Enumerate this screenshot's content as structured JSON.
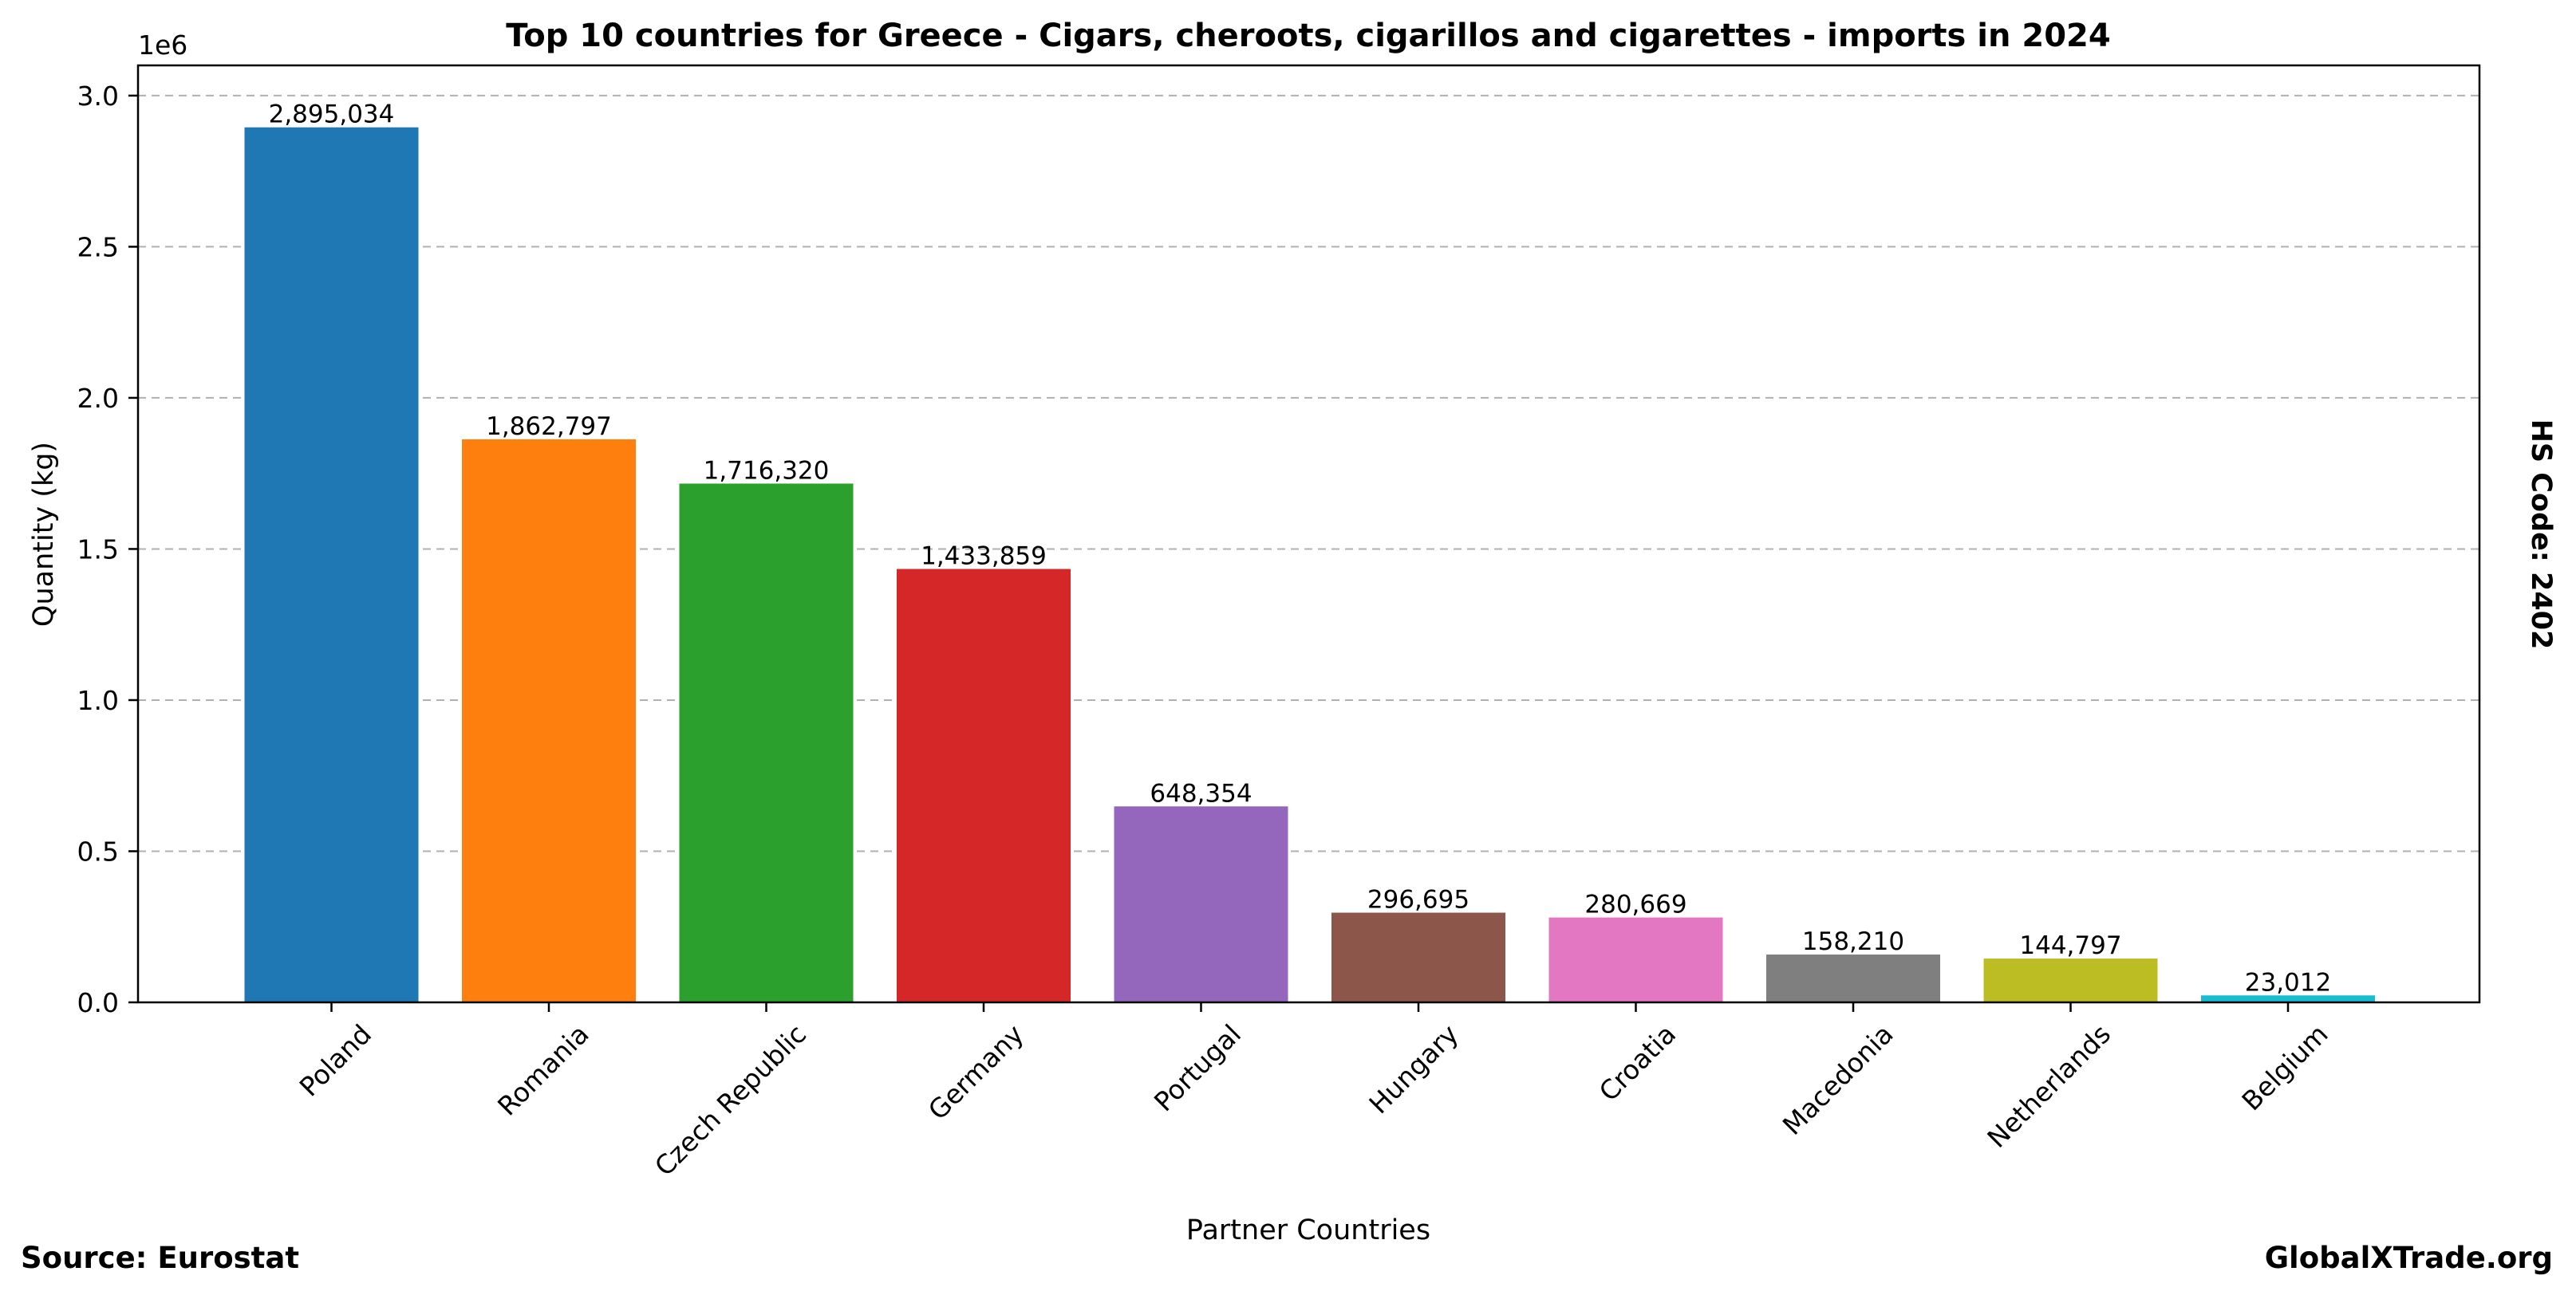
{
  "chart_data": {
    "type": "bar",
    "title": "Top 10 countries for Greece - Cigars, cheroots, cigarillos and cigarettes - imports in 2024",
    "xlabel": "Partner Countries",
    "ylabel": "Quantity (kg)",
    "y_scale_label": "1e6",
    "ylim": [
      0,
      3.1
    ],
    "yticks": [
      0.0,
      0.5,
      1.0,
      1.5,
      2.0,
      2.5,
      3.0
    ],
    "ytick_labels": [
      "0.0",
      "0.5",
      "1.0",
      "1.5",
      "2.0",
      "2.5",
      "3.0"
    ],
    "grid": "horizontal dashed",
    "categories": [
      "Poland",
      "Romania",
      "Czech Republic",
      "Germany",
      "Portugal",
      "Hungary",
      "Croatia",
      "Macedonia",
      "Netherlands",
      "Belgium"
    ],
    "values": [
      2895034,
      1862797,
      1716320,
      1433859,
      648354,
      296695,
      280669,
      158210,
      144797,
      23012
    ],
    "value_labels": [
      "2,895,034",
      "1,862,797",
      "1,716,320",
      "1,433,859",
      "648,354",
      "296,695",
      "280,669",
      "158,210",
      "144,797",
      "23,012"
    ],
    "colors": [
      "#1f77b4",
      "#ff7f0e",
      "#2ca02c",
      "#d62728",
      "#9467bd",
      "#8c564b",
      "#e377c2",
      "#7f7f7f",
      "#bcbd22",
      "#17becf"
    ]
  },
  "footer": {
    "source": "Source: Eurostat",
    "brand": "GlobalXTrade.org",
    "hs_code": "HS Code: 2402"
  }
}
